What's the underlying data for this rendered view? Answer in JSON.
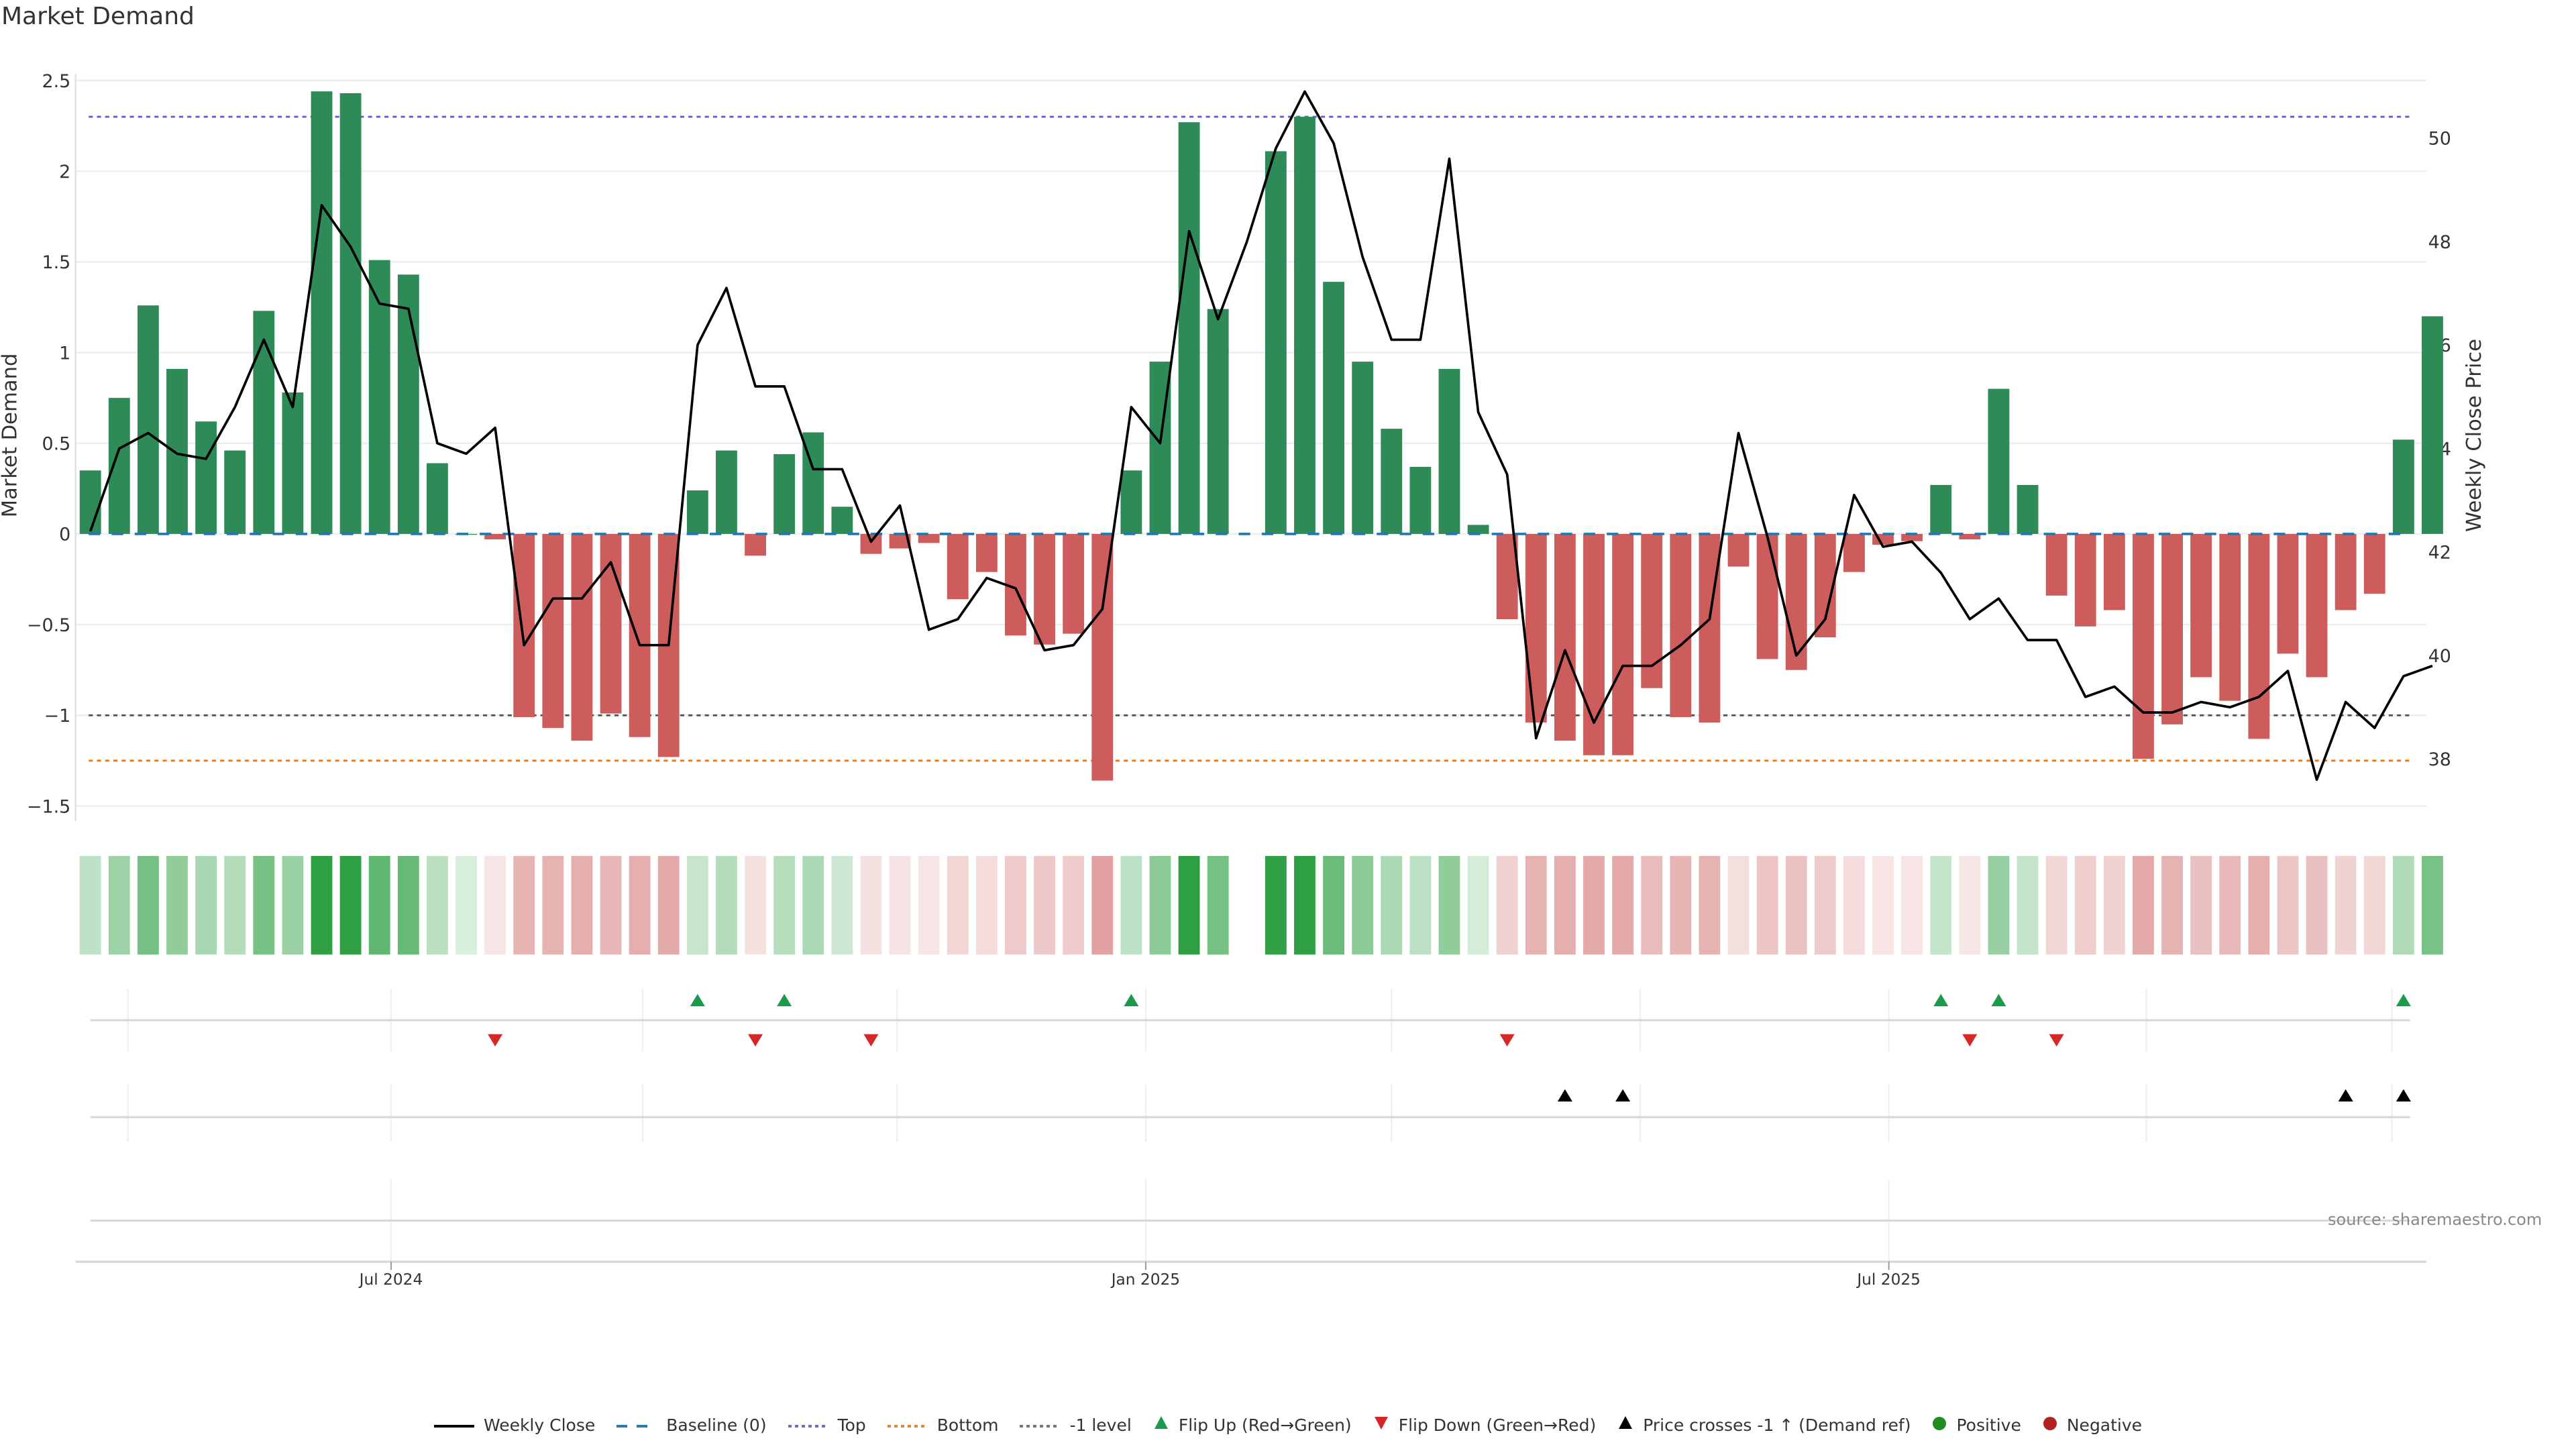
{
  "title": "Market Demand",
  "source": "source: sharemaestro.com",
  "colors": {
    "positive_bar": "#2e8b57",
    "negative_bar": "#cd5c5c",
    "line": "#000000",
    "baseline": "#1f77b4",
    "top": "#6a5acd",
    "bottom": "#e67e22",
    "minus1": "#555555",
    "flip_up": "#1a9a4a",
    "flip_down": "#d62728",
    "price_cross": "#000000",
    "positive_dot": "#228b22",
    "negative_dot": "#b22222"
  },
  "legend": [
    {
      "label": "Weekly Close",
      "symbol": "line"
    },
    {
      "label": "Baseline (0)",
      "symbol": "dashed-blue"
    },
    {
      "label": "Top",
      "symbol": "dotted-purple"
    },
    {
      "label": "Bottom",
      "symbol": "dotted-orange"
    },
    {
      "label": "-1 level",
      "symbol": "dotted-gray"
    },
    {
      "label": "Flip Up (Red→Green)",
      "symbol": "triangle-up-green"
    },
    {
      "label": "Flip Down (Green→Red)",
      "symbol": "triangle-down-red"
    },
    {
      "label": "Price crosses -1 ↑ (Demand ref)",
      "symbol": "triangle-up-black"
    },
    {
      "label": "Positive",
      "symbol": "dot-green"
    },
    {
      "label": "Negative",
      "symbol": "dot-red"
    }
  ],
  "chart_data": {
    "type": "bar",
    "title": "Market Demand",
    "ylabel": "Market Demand",
    "y2label": "Weekly Close Price",
    "ylim": [
      -1.65,
      2.65
    ],
    "y2lim": [
      37.0,
      51.5
    ],
    "yticks": [
      "2.5",
      "2",
      "1.5",
      "1",
      "0.5",
      "0",
      "−0.5",
      "−1",
      "−1.5"
    ],
    "ytick_values": [
      2.5,
      2,
      1.5,
      1,
      0.5,
      0,
      -0.5,
      -1,
      -1.5
    ],
    "y2ticks": [
      "50",
      "48",
      "46",
      "44",
      "42",
      "40",
      "38"
    ],
    "y2tick_values": [
      50,
      48,
      46,
      44,
      42,
      40,
      38
    ],
    "xticks": [
      "Jul 2024",
      "Jan 2025",
      "Jul 2025"
    ],
    "xtick_weeks": [
      10.4,
      36.5,
      62.2
    ],
    "grid": true,
    "legend_position": "bottom",
    "reference_lines": {
      "baseline": 0,
      "top": 2.3,
      "bottom": -1.25,
      "minus1": -1
    },
    "demand": [
      0.35,
      0.75,
      1.26,
      0.91,
      0.62,
      0.46,
      1.23,
      0.78,
      2.44,
      2.43,
      1.51,
      1.43,
      0.39,
      0.0,
      -0.03,
      -1.01,
      -1.07,
      -1.14,
      -0.99,
      -1.12,
      -1.23,
      0.24,
      0.46,
      -0.12,
      0.44,
      0.56,
      0.15,
      -0.11,
      -0.08,
      -0.05,
      -0.36,
      -0.21,
      -0.56,
      -0.61,
      -0.55,
      -1.36,
      0.35,
      0.95,
      2.27,
      1.24,
      null,
      2.11,
      2.3,
      1.39,
      0.95,
      0.58,
      0.37,
      0.91,
      0.05,
      -0.47,
      -1.04,
      -1.14,
      -1.22,
      -1.22,
      -0.85,
      -1.01,
      -1.04,
      -0.18,
      -0.69,
      -0.75,
      -0.57,
      -0.21,
      -0.06,
      -0.04,
      0.27,
      -0.03,
      0.8,
      0.27,
      -0.34,
      -0.51,
      -0.42,
      -1.24,
      -1.05,
      -0.79,
      -0.92,
      -1.13,
      -0.66,
      -0.79,
      -0.42,
      -0.33,
      0.52,
      1.2
    ],
    "weekly_close": [
      42.4,
      44.0,
      44.3,
      43.9,
      43.8,
      44.8,
      46.1,
      44.8,
      48.7,
      47.9,
      46.8,
      46.7,
      44.1,
      43.9,
      44.4,
      40.2,
      41.1,
      41.1,
      41.8,
      40.2,
      40.2,
      46.0,
      47.1,
      45.2,
      45.2,
      43.6,
      43.6,
      42.2,
      42.9,
      40.5,
      40.7,
      41.5,
      41.3,
      40.1,
      40.2,
      40.9,
      44.8,
      44.1,
      48.2,
      46.5,
      48.0,
      49.8,
      50.9,
      49.9,
      47.7,
      46.1,
      46.1,
      49.6,
      44.7,
      43.5,
      38.4,
      40.1,
      38.7,
      39.8,
      39.8,
      40.2,
      40.7,
      44.3,
      42.3,
      40.0,
      40.7,
      43.1,
      42.1,
      42.2,
      41.6,
      40.7,
      41.1,
      40.3,
      40.3,
      39.2,
      39.4,
      38.9,
      38.9,
      39.1,
      39.0,
      39.2,
      39.7,
      37.6,
      39.1,
      38.6,
      39.6,
      39.8
    ],
    "flip_up_weeks": [
      21,
      24,
      36,
      64,
      66,
      80
    ],
    "flip_down_weeks": [
      14,
      23,
      27,
      49,
      65,
      68
    ],
    "price_cross_weeks": [
      51,
      53,
      78,
      80
    ],
    "month_grid_weeks": [
      1.3,
      10.4,
      19.1,
      27.9,
      36.5,
      45.0,
      53.6,
      62.2,
      71.1,
      79.6
    ]
  }
}
